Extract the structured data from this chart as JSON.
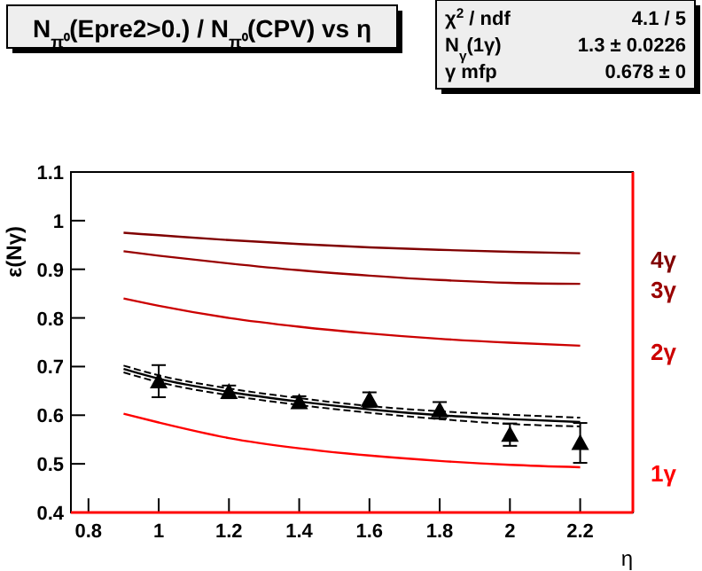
{
  "chart_data": {
    "type": "line",
    "title": "N$_{π⁰}$(Epre2>0.) / N$_{π⁰}$(CPV) vs η",
    "xlabel": "η",
    "ylabel": "ε(Nγ)",
    "xlim": [
      0.75,
      2.35
    ],
    "xticks": [
      0.8,
      1,
      1.2,
      1.4,
      1.6,
      1.8,
      2,
      2.2
    ],
    "ylim": [
      0.4,
      1.1
    ],
    "yticks": [
      0.4,
      0.5,
      0.6,
      0.7,
      0.8,
      0.9,
      1,
      1.1
    ],
    "grid": false,
    "annotations": [
      "χ$^{2}$ / ndf",
      "4.1 / 5",
      "N$_{γ}$(1γ)",
      "1.3 ± 0.0226",
      "γ mfp",
      "0.678 ±   0"
    ],
    "series": [
      {
        "name": "4γ",
        "color": "#800000",
        "x": [
          0.9,
          1.0,
          1.2,
          1.4,
          1.6,
          1.8,
          2.0,
          2.2
        ],
        "values": [
          0.975,
          0.97,
          0.96,
          0.952,
          0.945,
          0.94,
          0.936,
          0.933
        ]
      },
      {
        "name": "3γ",
        "color": "#990000",
        "x": [
          0.9,
          1.0,
          1.2,
          1.4,
          1.6,
          1.8,
          2.0,
          2.2
        ],
        "values": [
          0.937,
          0.928,
          0.912,
          0.898,
          0.887,
          0.878,
          0.872,
          0.87
        ]
      },
      {
        "name": "2γ",
        "color": "#cc0000",
        "x": [
          0.9,
          1.0,
          1.2,
          1.4,
          1.6,
          1.8,
          2.0,
          2.2
        ],
        "values": [
          0.84,
          0.825,
          0.8,
          0.782,
          0.768,
          0.757,
          0.749,
          0.743
        ]
      },
      {
        "name": "1γ",
        "color": "#ff0000",
        "x": [
          0.9,
          1.0,
          1.2,
          1.4,
          1.6,
          1.8,
          2.0,
          2.2
        ],
        "values": [
          0.603,
          0.585,
          0.553,
          0.532,
          0.517,
          0.506,
          0.498,
          0.493
        ]
      },
      {
        "type": "line",
        "color": "#000000",
        "line_style": "solid",
        "x": [
          0.9,
          1.0,
          1.2,
          1.4,
          1.6,
          1.8,
          2.0,
          2.2
        ],
        "values": [
          0.695,
          0.675,
          0.648,
          0.628,
          0.612,
          0.6,
          0.592,
          0.586
        ]
      },
      {
        "type": "line",
        "color": "#000000",
        "line_style": "dashed",
        "x": [
          0.9,
          1.0,
          1.2,
          1.4,
          1.6,
          1.8,
          2.0,
          2.2
        ],
        "values": [
          0.688,
          0.668,
          0.641,
          0.621,
          0.605,
          0.592,
          0.582,
          0.577
        ]
      },
      {
        "type": "line",
        "color": "#000000",
        "line_style": "dashed",
        "x": [
          0.9,
          1.0,
          1.2,
          1.4,
          1.6,
          1.8,
          2.0,
          2.2
        ],
        "values": [
          0.702,
          0.682,
          0.655,
          0.635,
          0.619,
          0.608,
          0.601,
          0.595
        ]
      },
      {
        "type": "scatter",
        "marker": "triangle",
        "color": "#000000",
        "x": [
          1.0,
          1.2,
          1.4,
          1.6,
          1.8,
          2.0,
          2.2
        ],
        "values": [
          0.67,
          0.648,
          0.627,
          0.632,
          0.61,
          0.56,
          0.543
        ],
        "errors": [
          0.033,
          0.013,
          0.012,
          0.015,
          0.017,
          0.023,
          0.041
        ]
      }
    ]
  }
}
